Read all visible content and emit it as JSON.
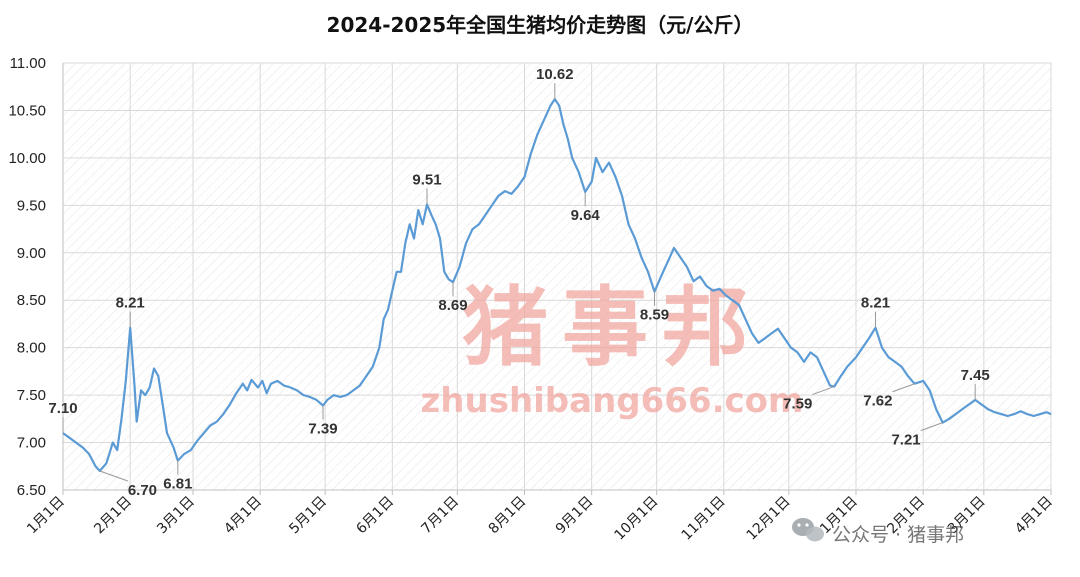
{
  "chart_data": {
    "type": "line",
    "title": "2024-2025年全国生猪均价走势图（元/公斤）",
    "ylim": [
      6.5,
      11.0
    ],
    "yticks": [
      "6.50",
      "7.00",
      "7.50",
      "8.00",
      "8.50",
      "9.00",
      "9.50",
      "10.00",
      "10.50",
      "11.00"
    ],
    "xlim": [
      "2024-01-01",
      "2025-04-01"
    ],
    "xticks": [
      {
        "date": "2024-01-01",
        "label": "1月1日"
      },
      {
        "date": "2024-02-01",
        "label": "2月1日"
      },
      {
        "date": "2024-03-01",
        "label": "3月1日"
      },
      {
        "date": "2024-04-01",
        "label": "4月1日"
      },
      {
        "date": "2024-05-01",
        "label": "5月1日"
      },
      {
        "date": "2024-06-01",
        "label": "6月1日"
      },
      {
        "date": "2024-07-01",
        "label": "7月1日"
      },
      {
        "date": "2024-08-01",
        "label": "8月1日"
      },
      {
        "date": "2024-09-01",
        "label": "9月1日"
      },
      {
        "date": "2024-10-01",
        "label": "10月1日"
      },
      {
        "date": "2024-11-01",
        "label": "11月1日"
      },
      {
        "date": "2024-12-01",
        "label": "12月1日"
      },
      {
        "date": "2025-01-01",
        "label": "1月1日"
      },
      {
        "date": "2025-02-01",
        "label": "2月1日"
      },
      {
        "date": "2025-03-01",
        "label": "3月1日"
      },
      {
        "date": "2025-04-01",
        "label": "4月1日"
      }
    ],
    "grid": true,
    "series": [
      {
        "color": "#5b9bd5",
        "points": [
          [
            "2024-01-01",
            7.1
          ],
          [
            "2024-01-04",
            7.05
          ],
          [
            "2024-01-07",
            7.0
          ],
          [
            "2024-01-10",
            6.95
          ],
          [
            "2024-01-13",
            6.88
          ],
          [
            "2024-01-16",
            6.75
          ],
          [
            "2024-01-18",
            6.7
          ],
          [
            "2024-01-21",
            6.78
          ],
          [
            "2024-01-24",
            7.0
          ],
          [
            "2024-01-26",
            6.92
          ],
          [
            "2024-01-28",
            7.25
          ],
          [
            "2024-01-30",
            7.65
          ],
          [
            "2024-02-01",
            8.21
          ],
          [
            "2024-02-03",
            7.6
          ],
          [
            "2024-02-04",
            7.22
          ],
          [
            "2024-02-06",
            7.55
          ],
          [
            "2024-02-08",
            7.5
          ],
          [
            "2024-02-10",
            7.58
          ],
          [
            "2024-02-12",
            7.78
          ],
          [
            "2024-02-14",
            7.7
          ],
          [
            "2024-02-16",
            7.4
          ],
          [
            "2024-02-18",
            7.1
          ],
          [
            "2024-02-21",
            6.95
          ],
          [
            "2024-02-23",
            6.81
          ],
          [
            "2024-02-26",
            6.88
          ],
          [
            "2024-02-29",
            6.92
          ],
          [
            "2024-03-03",
            7.02
          ],
          [
            "2024-03-06",
            7.1
          ],
          [
            "2024-03-09",
            7.18
          ],
          [
            "2024-03-12",
            7.22
          ],
          [
            "2024-03-15",
            7.3
          ],
          [
            "2024-03-18",
            7.4
          ],
          [
            "2024-03-21",
            7.52
          ],
          [
            "2024-03-24",
            7.62
          ],
          [
            "2024-03-26",
            7.55
          ],
          [
            "2024-03-28",
            7.66
          ],
          [
            "2024-03-31",
            7.58
          ],
          [
            "2024-04-02",
            7.65
          ],
          [
            "2024-04-04",
            7.52
          ],
          [
            "2024-04-06",
            7.62
          ],
          [
            "2024-04-09",
            7.65
          ],
          [
            "2024-04-12",
            7.6
          ],
          [
            "2024-04-15",
            7.58
          ],
          [
            "2024-04-18",
            7.55
          ],
          [
            "2024-04-21",
            7.5
          ],
          [
            "2024-04-24",
            7.48
          ],
          [
            "2024-04-27",
            7.45
          ],
          [
            "2024-04-30",
            7.39
          ],
          [
            "2024-05-02",
            7.45
          ],
          [
            "2024-05-05",
            7.5
          ],
          [
            "2024-05-08",
            7.48
          ],
          [
            "2024-05-11",
            7.5
          ],
          [
            "2024-05-14",
            7.55
          ],
          [
            "2024-05-17",
            7.6
          ],
          [
            "2024-05-20",
            7.7
          ],
          [
            "2024-05-23",
            7.8
          ],
          [
            "2024-05-26",
            8.0
          ],
          [
            "2024-05-28",
            8.3
          ],
          [
            "2024-05-30",
            8.4
          ],
          [
            "2024-06-01",
            8.6
          ],
          [
            "2024-06-03",
            8.8
          ],
          [
            "2024-06-05",
            8.8
          ],
          [
            "2024-06-07",
            9.1
          ],
          [
            "2024-06-09",
            9.3
          ],
          [
            "2024-06-11",
            9.15
          ],
          [
            "2024-06-13",
            9.45
          ],
          [
            "2024-06-15",
            9.3
          ],
          [
            "2024-06-17",
            9.51
          ],
          [
            "2024-06-19",
            9.4
          ],
          [
            "2024-06-21",
            9.3
          ],
          [
            "2024-06-23",
            9.15
          ],
          [
            "2024-06-25",
            8.8
          ],
          [
            "2024-06-27",
            8.72
          ],
          [
            "2024-06-29",
            8.69
          ],
          [
            "2024-07-02",
            8.85
          ],
          [
            "2024-07-05",
            9.1
          ],
          [
            "2024-07-08",
            9.25
          ],
          [
            "2024-07-11",
            9.3
          ],
          [
            "2024-07-14",
            9.4
          ],
          [
            "2024-07-17",
            9.5
          ],
          [
            "2024-07-20",
            9.6
          ],
          [
            "2024-07-23",
            9.65
          ],
          [
            "2024-07-26",
            9.62
          ],
          [
            "2024-07-29",
            9.7
          ],
          [
            "2024-08-01",
            9.8
          ],
          [
            "2024-08-04",
            10.05
          ],
          [
            "2024-08-07",
            10.25
          ],
          [
            "2024-08-10",
            10.4
          ],
          [
            "2024-08-13",
            10.55
          ],
          [
            "2024-08-15",
            10.62
          ],
          [
            "2024-08-17",
            10.55
          ],
          [
            "2024-08-19",
            10.35
          ],
          [
            "2024-08-21",
            10.2
          ],
          [
            "2024-08-23",
            10.0
          ],
          [
            "2024-08-26",
            9.85
          ],
          [
            "2024-08-29",
            9.64
          ],
          [
            "2024-09-01",
            9.75
          ],
          [
            "2024-09-03",
            10.0
          ],
          [
            "2024-09-06",
            9.85
          ],
          [
            "2024-09-09",
            9.95
          ],
          [
            "2024-09-12",
            9.8
          ],
          [
            "2024-09-15",
            9.6
          ],
          [
            "2024-09-18",
            9.3
          ],
          [
            "2024-09-21",
            9.15
          ],
          [
            "2024-09-24",
            8.95
          ],
          [
            "2024-09-27",
            8.8
          ],
          [
            "2024-09-30",
            8.59
          ],
          [
            "2024-10-03",
            8.75
          ],
          [
            "2024-10-06",
            8.9
          ],
          [
            "2024-10-09",
            9.05
          ],
          [
            "2024-10-12",
            8.95
          ],
          [
            "2024-10-15",
            8.85
          ],
          [
            "2024-10-18",
            8.7
          ],
          [
            "2024-10-21",
            8.75
          ],
          [
            "2024-10-24",
            8.65
          ],
          [
            "2024-10-27",
            8.6
          ],
          [
            "2024-10-30",
            8.62
          ],
          [
            "2024-11-02",
            8.55
          ],
          [
            "2024-11-05",
            8.5
          ],
          [
            "2024-11-08",
            8.45
          ],
          [
            "2024-11-11",
            8.3
          ],
          [
            "2024-11-14",
            8.15
          ],
          [
            "2024-11-17",
            8.05
          ],
          [
            "2024-11-20",
            8.1
          ],
          [
            "2024-11-23",
            8.15
          ],
          [
            "2024-11-26",
            8.2
          ],
          [
            "2024-11-29",
            8.1
          ],
          [
            "2024-12-02",
            8.0
          ],
          [
            "2024-12-05",
            7.95
          ],
          [
            "2024-12-08",
            7.85
          ],
          [
            "2024-12-11",
            7.95
          ],
          [
            "2024-12-14",
            7.9
          ],
          [
            "2024-12-17",
            7.75
          ],
          [
            "2024-12-20",
            7.6
          ],
          [
            "2024-12-22",
            7.59
          ],
          [
            "2024-12-25",
            7.7
          ],
          [
            "2024-12-28",
            7.8
          ],
          [
            "2025-01-01",
            7.9
          ],
          [
            "2025-01-04",
            8.0
          ],
          [
            "2025-01-07",
            8.1
          ],
          [
            "2025-01-10",
            8.21
          ],
          [
            "2025-01-13",
            8.0
          ],
          [
            "2025-01-16",
            7.9
          ],
          [
            "2025-01-19",
            7.85
          ],
          [
            "2025-01-22",
            7.8
          ],
          [
            "2025-01-25",
            7.7
          ],
          [
            "2025-01-28",
            7.62
          ],
          [
            "2025-02-01",
            7.65
          ],
          [
            "2025-02-04",
            7.55
          ],
          [
            "2025-02-07",
            7.35
          ],
          [
            "2025-02-10",
            7.21
          ],
          [
            "2025-02-13",
            7.25
          ],
          [
            "2025-02-16",
            7.3
          ],
          [
            "2025-02-19",
            7.35
          ],
          [
            "2025-02-22",
            7.4
          ],
          [
            "2025-02-25",
            7.45
          ],
          [
            "2025-02-28",
            7.4
          ],
          [
            "2025-03-03",
            7.35
          ],
          [
            "2025-03-06",
            7.32
          ],
          [
            "2025-03-09",
            7.3
          ],
          [
            "2025-03-12",
            7.28
          ],
          [
            "2025-03-15",
            7.3
          ],
          [
            "2025-03-18",
            7.33
          ],
          [
            "2025-03-21",
            7.3
          ],
          [
            "2025-03-24",
            7.28
          ],
          [
            "2025-03-27",
            7.3
          ],
          [
            "2025-03-30",
            7.32
          ],
          [
            "2025-04-01",
            7.3
          ]
        ]
      }
    ],
    "annotations": [
      {
        "date": "2024-01-01",
        "value": 7.1,
        "text": "7.10",
        "pos": "above"
      },
      {
        "date": "2024-01-18",
        "value": 6.7,
        "text": "6.70",
        "pos": "below-right"
      },
      {
        "date": "2024-02-01",
        "value": 8.21,
        "text": "8.21",
        "pos": "above"
      },
      {
        "date": "2024-02-23",
        "value": 6.81,
        "text": "6.81",
        "pos": "below"
      },
      {
        "date": "2024-04-30",
        "value": 7.39,
        "text": "7.39",
        "pos": "below"
      },
      {
        "date": "2024-06-17",
        "value": 9.51,
        "text": "9.51",
        "pos": "above"
      },
      {
        "date": "2024-06-29",
        "value": 8.69,
        "text": "8.69",
        "pos": "below"
      },
      {
        "date": "2024-08-15",
        "value": 10.62,
        "text": "10.62",
        "pos": "above"
      },
      {
        "date": "2024-08-29",
        "value": 9.64,
        "text": "9.64",
        "pos": "below"
      },
      {
        "date": "2024-09-30",
        "value": 8.59,
        "text": "8.59",
        "pos": "below"
      },
      {
        "date": "2024-12-22",
        "value": 7.59,
        "text": "7.59",
        "pos": "below-left"
      },
      {
        "date": "2025-01-10",
        "value": 8.21,
        "text": "8.21",
        "pos": "above"
      },
      {
        "date": "2025-01-28",
        "value": 7.62,
        "text": "7.62",
        "pos": "below-left"
      },
      {
        "date": "2025-02-10",
        "value": 7.21,
        "text": "7.21",
        "pos": "below-left"
      },
      {
        "date": "2025-02-25",
        "value": 7.45,
        "text": "7.45",
        "pos": "above"
      }
    ]
  },
  "watermark": {
    "brand": "猪事邦",
    "url": "zhushibang666.com",
    "wechat": "公众号 · 猪事邦"
  }
}
